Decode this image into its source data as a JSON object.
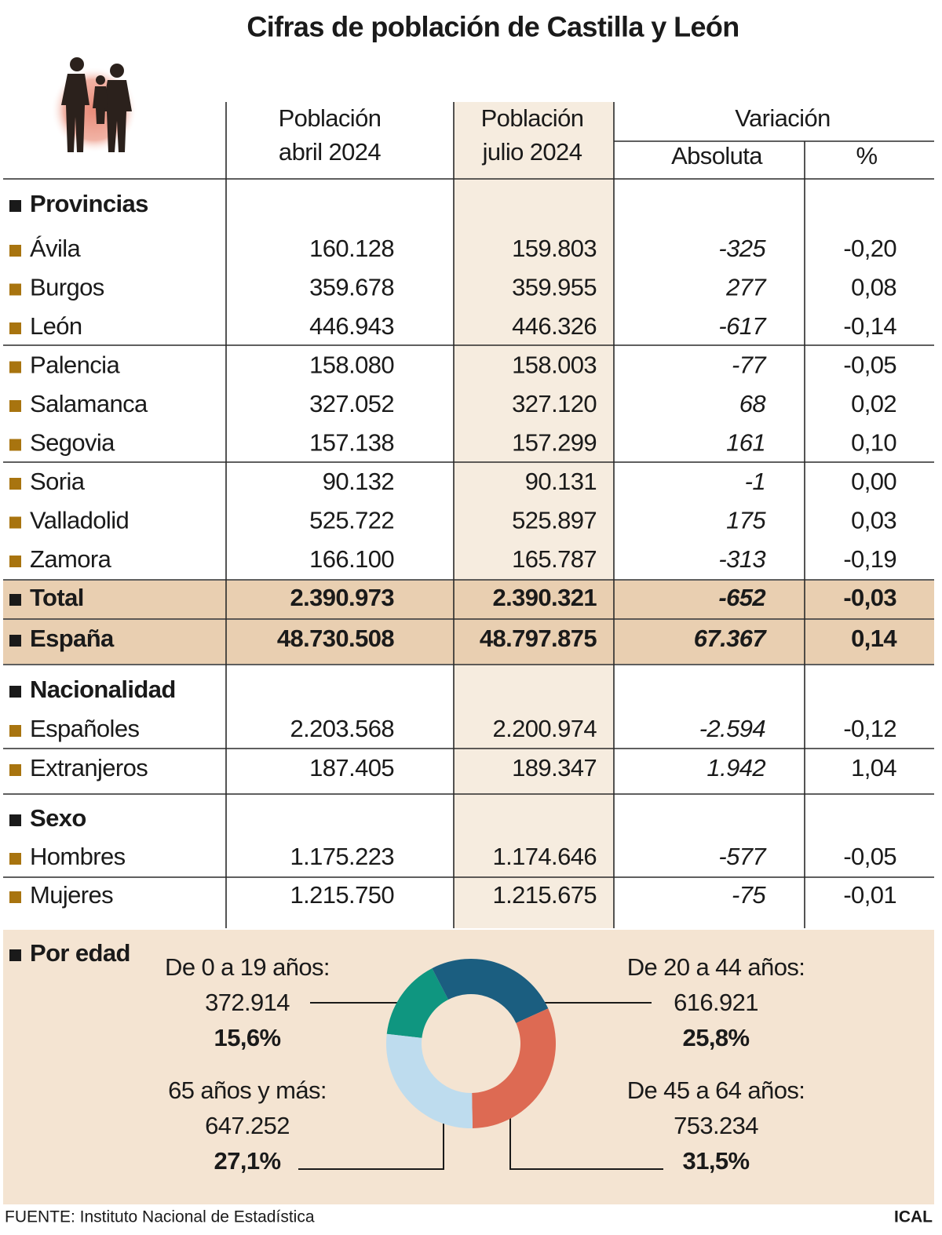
{
  "title": "Cifras de población de Castilla y León",
  "columns": [
    [
      "Población",
      "abril 2024"
    ],
    [
      "Población",
      "julio 2024"
    ]
  ],
  "variation": {
    "label": "Variación",
    "absolute": "Absoluta",
    "percent": "%"
  },
  "sections": [
    {
      "name": "Provincias",
      "rows": [
        [
          "Ávila",
          "160.128",
          "159.803",
          "-325",
          "-0,20"
        ],
        [
          "Burgos",
          "359.678",
          "359.955",
          "277",
          "0,08"
        ],
        [
          "León",
          "446.943",
          "446.326",
          "-617",
          "-0,14"
        ],
        [
          "Palencia",
          "158.080",
          "158.003",
          "-77",
          "-0,05"
        ],
        [
          "Salamanca",
          "327.052",
          "327.120",
          "68",
          "0,02"
        ],
        [
          "Segovia",
          "157.138",
          "157.299",
          "161",
          "0,10"
        ],
        [
          "Soria",
          "90.132",
          "90.131",
          "-1",
          "0,00"
        ],
        [
          "Valladolid",
          "525.722",
          "525.897",
          "175",
          "0,03"
        ],
        [
          "Zamora",
          "166.100",
          "165.787",
          "-313",
          "-0,19"
        ]
      ],
      "totals": [
        [
          "Total",
          "2.390.973",
          "2.390.321",
          "-652",
          "-0,03"
        ],
        [
          "España",
          "48.730.508",
          "48.797.875",
          "67.367",
          "0,14"
        ]
      ]
    },
    {
      "name": "Nacionalidad",
      "rows": [
        [
          "Españoles",
          "2.203.568",
          "2.200.974",
          "-2.594",
          "-0,12"
        ],
        [
          "Extranjeros",
          "187.405",
          "189.347",
          "1.942",
          "1,04"
        ]
      ]
    },
    {
      "name": "Sexo",
      "rows": [
        [
          "Hombres",
          "1.175.223",
          "1.174.646",
          "-577",
          "-0,05"
        ],
        [
          "Mujeres",
          "1.215.750",
          "1.215.675",
          "-75",
          "-0,01"
        ]
      ]
    }
  ],
  "chart_data": {
    "type": "donut",
    "title": "Por edad",
    "categories": [
      "De 0 a 19 años:",
      "De 20 a 44 años:",
      "De 45 a 64 años:",
      "65 años y más:"
    ],
    "populations": [
      "372.914",
      "616.921",
      "753.234",
      "647.252"
    ],
    "values": [
      15.6,
      25.8,
      31.5,
      27.1
    ],
    "value_labels": [
      "15,6%",
      "25,8%",
      "31,5%",
      "27,1%"
    ],
    "colors": [
      "#0f9680",
      "#1b5e80",
      "#dd6a53",
      "#bedcee"
    ]
  },
  "footer": {
    "source": "FUENTE: Instituto Nacional de Estadística",
    "agency": "ICAL"
  }
}
